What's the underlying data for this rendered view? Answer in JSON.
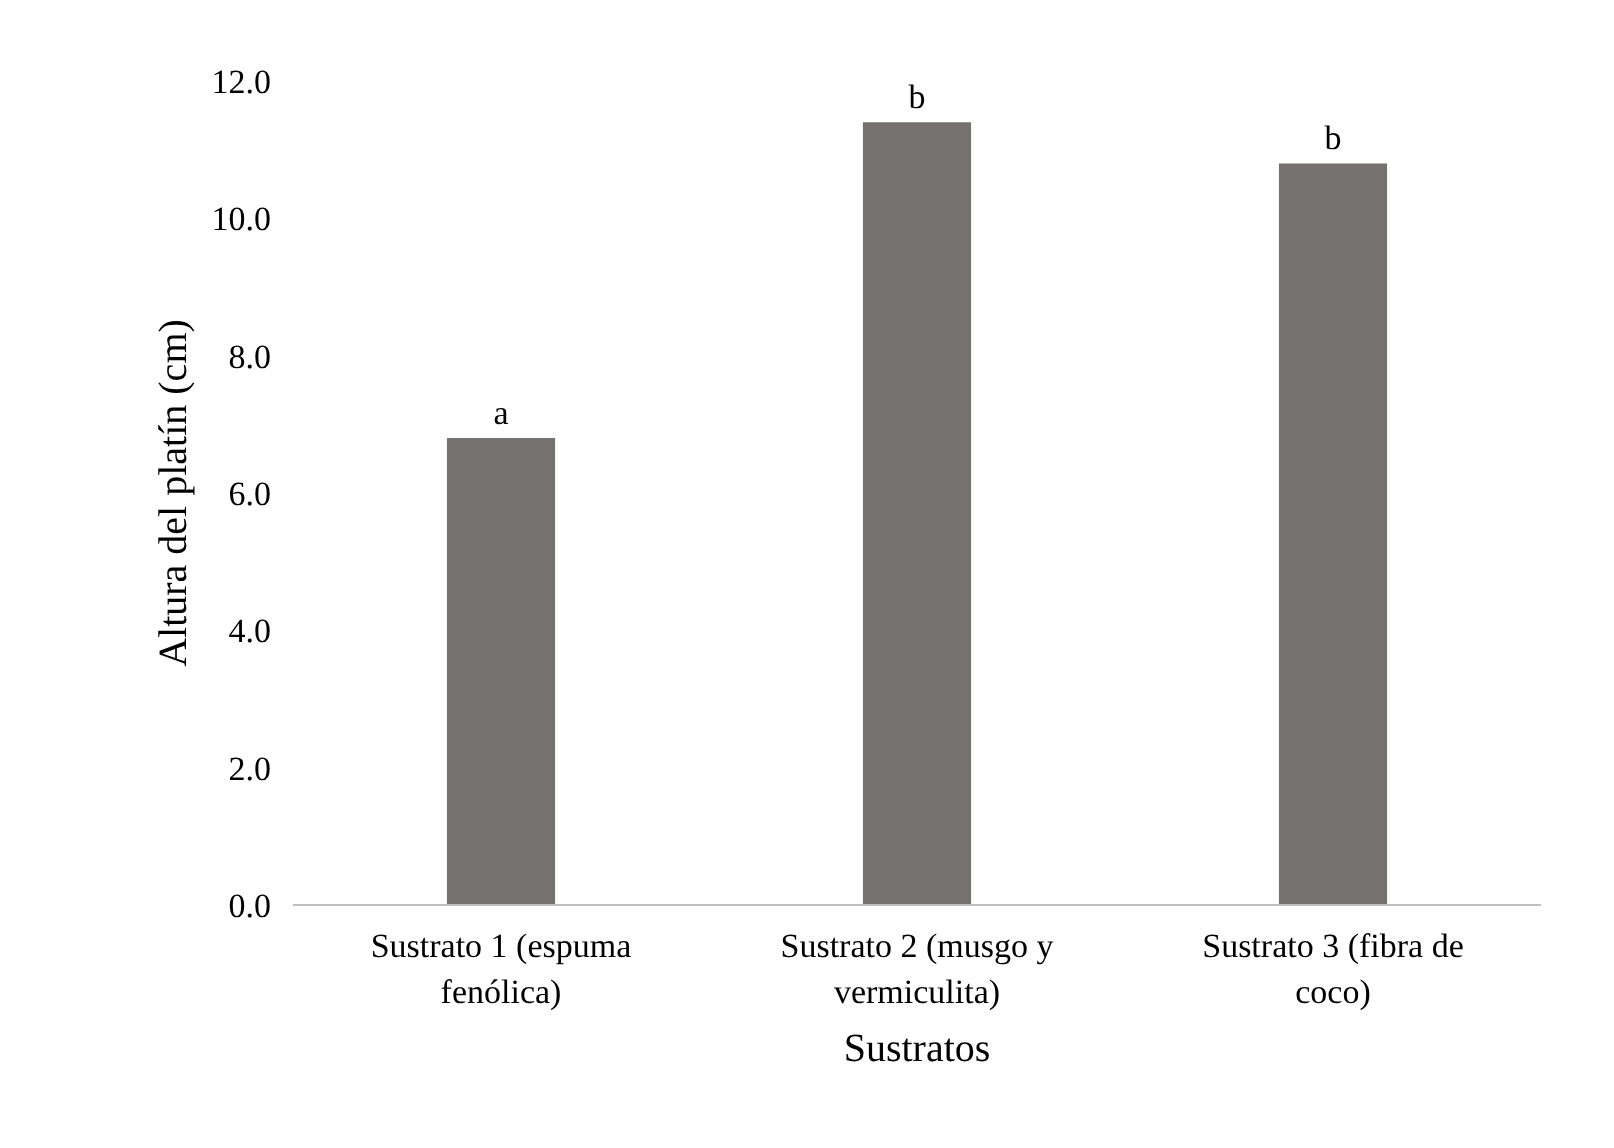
{
  "chart_data": {
    "type": "bar",
    "xlabel": "Sustratos",
    "ylabel": "Altura del platín (cm)",
    "categories": [
      "Sustrato 1 (espuma\nfenólica)",
      "Sustrato 2 (musgo y\nvermiculita)",
      "Sustrato 3 (fibra de\ncoco)"
    ],
    "values": [
      6.8,
      11.4,
      10.8
    ],
    "color": "#767171",
    "ylim": [
      0,
      12
    ],
    "yticks": [
      {
        "value": 0,
        "label": "0.0"
      },
      {
        "value": 2,
        "label": "2.0"
      },
      {
        "value": 4,
        "label": "4.0"
      },
      {
        "value": 6,
        "label": "6.0"
      },
      {
        "value": 8,
        "label": "8.0"
      },
      {
        "value": 10,
        "label": "10.0"
      },
      {
        "value": 12,
        "label": "12.0"
      }
    ],
    "grid": false,
    "annotations": [
      {
        "text": "a",
        "x": "Sustrato 1 (espuma\nfenólica)",
        "y": 6.8
      },
      {
        "text": "b",
        "x": "Sustrato 2 (musgo y\nvermiculita)",
        "y": 11.4
      },
      {
        "text": "b",
        "x": "Sustrato 3 (fibra de\ncoco)",
        "y": 10.8
      }
    ]
  }
}
